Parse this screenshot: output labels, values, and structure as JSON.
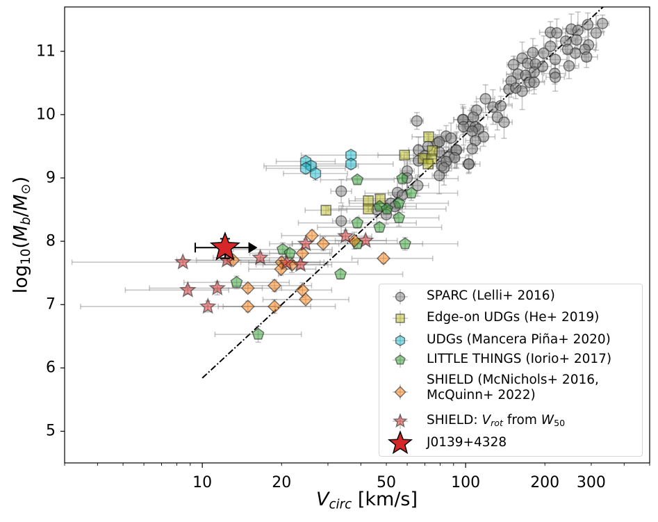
{
  "chart_data": {
    "type": "scatter",
    "title": "",
    "xlabel": {
      "var": "V",
      "sub": "circ",
      "unit": " [km/s]"
    },
    "ylabel": {
      "log": "log",
      "base": "10",
      "open": "(",
      "m": "M",
      "msub": "b",
      "slash": "/",
      "m2": "M",
      "sun": "⊙",
      "close": ")"
    },
    "xscale": "log",
    "xlim": [
      3,
      500
    ],
    "ylim": [
      4.5,
      11.7
    ],
    "xticks": [
      10,
      20,
      50,
      100,
      200,
      300
    ],
    "xtick_labels": [
      "10",
      "20",
      "50",
      "100",
      "200",
      "300"
    ],
    "yticks": [
      5,
      6,
      7,
      8,
      9,
      10,
      11
    ],
    "ytick_labels": [
      "5",
      "6",
      "7",
      "8",
      "9",
      "10",
      "11"
    ],
    "grid": false,
    "legend_placement": "lower-right",
    "reference_line": {
      "style": "dash-dot",
      "color": "#000000",
      "slope": 3.85,
      "intercept": 1.99,
      "x_range": [
        10,
        335
      ]
    },
    "series": [
      {
        "name": "SPARC (Lelli+ 2016)",
        "marker": "circle",
        "color": "#808080",
        "typical_xerr_dex": 0.035,
        "typical_yerr_dex": 0.22,
        "points": [
          [
            65.3,
            9.9
          ],
          [
            33.7,
            8.79
          ],
          [
            33.7,
            8.32
          ],
          [
            60,
            9.11
          ],
          [
            65.8,
            8.88
          ],
          [
            55.1,
            8.77
          ],
          [
            57.5,
            8.73
          ],
          [
            50,
            8.42
          ],
          [
            66.2,
            9.44
          ],
          [
            66.2,
            9.27
          ],
          [
            78,
            9.55
          ],
          [
            79.4,
            9.41
          ],
          [
            81.3,
            9.19
          ],
          [
            79.4,
            9.04
          ],
          [
            84.3,
            9.66
          ],
          [
            86.5,
            9.33
          ],
          [
            91.9,
            9.44
          ],
          [
            102.6,
            9.22
          ],
          [
            98,
            9.92
          ],
          [
            104,
            9.81
          ],
          [
            331,
            11.44
          ],
          [
            291,
            11.42
          ],
          [
            252,
            11.35
          ],
          [
            267,
            11.33
          ],
          [
            210,
            11.3
          ],
          [
            222,
            11.29
          ],
          [
            313,
            11.29
          ],
          [
            264,
            11.18
          ],
          [
            240,
            11.16
          ],
          [
            293,
            11.1
          ],
          [
            210,
            11.08
          ],
          [
            284,
            11.03
          ],
          [
            261,
            10.97
          ],
          [
            244,
            11.03
          ],
          [
            288,
            10.91
          ],
          [
            180,
            10.98
          ],
          [
            198,
            10.97
          ],
          [
            219,
            10.87
          ],
          [
            247,
            10.77
          ],
          [
            164,
            10.89
          ],
          [
            152,
            10.79
          ],
          [
            172,
            10.81
          ],
          [
            196,
            10.76
          ],
          [
            184,
            10.8
          ],
          [
            218,
            10.65
          ],
          [
            219,
            10.59
          ],
          [
            182,
            10.67
          ],
          [
            158,
            10.64
          ],
          [
            169,
            10.62
          ],
          [
            149,
            10.53
          ],
          [
            175,
            10.51
          ],
          [
            182,
            10.51
          ],
          [
            146,
            10.4
          ],
          [
            164,
            10.37
          ],
          [
            155,
            10.42
          ],
          [
            119,
            10.25
          ],
          [
            127,
            10.12
          ],
          [
            136,
            10.14
          ],
          [
            132,
            9.96
          ],
          [
            140,
            9.88
          ],
          [
            110,
            10.07
          ],
          [
            107,
            9.96
          ],
          [
            97.5,
            9.92
          ],
          [
            98.2,
            9.81
          ],
          [
            109,
            9.81
          ],
          [
            112,
            9.77
          ],
          [
            106,
            9.74
          ],
          [
            117,
            9.65
          ],
          [
            109,
            9.59
          ],
          [
            106,
            9.46
          ],
          [
            103,
            9.22
          ],
          [
            79.4,
            9.57
          ],
          [
            88,
            9.63
          ],
          [
            92.5,
            9.44
          ],
          [
            90.8,
            9.32
          ],
          [
            84.3,
            9.26
          ],
          [
            82.8,
            9.16
          ],
          [
            70,
            9.35
          ],
          [
            72,
            9.5
          ],
          [
            60,
            9.0
          ],
          [
            52,
            8.6
          ],
          [
            54,
            8.55
          ],
          [
            46,
            8.5
          ]
        ]
      },
      {
        "name": "Edge-on UDGs (He+ 2019)",
        "marker": "square",
        "color": "#bcbd22",
        "typical_xerr_dex": 0.09,
        "typical_yerr_dex": 0.06,
        "points": [
          [
            72.4,
            9.65
          ],
          [
            58.6,
            9.36
          ],
          [
            69.0,
            9.31
          ],
          [
            74.7,
            9.43
          ],
          [
            74.3,
            9.3
          ],
          [
            72.0,
            9.22
          ],
          [
            42.7,
            8.64
          ],
          [
            42.7,
            8.51
          ],
          [
            47.4,
            8.67
          ],
          [
            29.5,
            8.49
          ]
        ]
      },
      {
        "name": "UDGs (Mancera Piña+ 2020)",
        "marker": "hexagon",
        "color": "#17becf",
        "typical_xerr_dex": 0.16,
        "typical_yerr_dex": 0.08,
        "points": [
          [
            24.7,
            9.26
          ],
          [
            25.9,
            9.19
          ],
          [
            24.7,
            9.15
          ],
          [
            26.9,
            9.07
          ],
          [
            36.7,
            9.36
          ],
          [
            36.7,
            9.22
          ]
        ]
      },
      {
        "name": "LITTLE THINGS (Iorio+ 2017)",
        "marker": "pentagon",
        "color": "#2ca02c",
        "typical_xerr_dex": 0.2,
        "typical_yerr_dex": 0.1,
        "points": [
          [
            38.8,
            8.97
          ],
          [
            38.8,
            8.29
          ],
          [
            20.2,
            7.87
          ],
          [
            21.5,
            7.81
          ],
          [
            33.5,
            7.48
          ],
          [
            13.5,
            7.35
          ],
          [
            16.3,
            6.53
          ],
          [
            38.8,
            7.96
          ],
          [
            57.5,
            8.99
          ],
          [
            62.2,
            8.76
          ],
          [
            47.1,
            8.55
          ],
          [
            50.3,
            8.51
          ],
          [
            55.8,
            8.6
          ],
          [
            55.8,
            8.37
          ],
          [
            47.1,
            8.22
          ],
          [
            58.9,
            7.96
          ]
        ]
      },
      {
        "name": "SHIELD (McNichols+ 2016,",
        "name_line2": "McQuinn+ 2022)",
        "marker": "diamond",
        "color": "#ff7f0e",
        "typical_yerr_dex": 0.1,
        "columns": [
          "V",
          "logM",
          "V_lo",
          "V_hi"
        ],
        "points": [
          [
            13.1,
            7.7,
            9.5,
            18
          ],
          [
            26.1,
            8.09,
            20,
            34
          ],
          [
            28.8,
            7.96,
            22,
            38
          ],
          [
            24.0,
            7.81,
            18,
            31
          ],
          [
            20.0,
            7.67,
            14,
            29
          ],
          [
            19.9,
            7.56,
            15,
            27
          ],
          [
            21.9,
            7.63,
            16,
            30
          ],
          [
            14.9,
            7.26,
            11,
            20
          ],
          [
            18.8,
            7.3,
            13,
            26
          ],
          [
            24.0,
            7.23,
            19,
            31
          ],
          [
            24.7,
            7.08,
            17,
            36
          ],
          [
            14.9,
            6.97,
            11.5,
            19
          ],
          [
            18.8,
            6.97,
            12,
            32
          ],
          [
            37.8,
            8.01,
            28,
            50
          ],
          [
            48.8,
            7.73,
            37,
            75
          ]
        ]
      },
      {
        "name": "SHIELD: V_rot from W_50",
        "marker": "star",
        "color": "#d62728",
        "typical_yerr_dex": 0.08,
        "columns": [
          "V",
          "logM",
          "V_lo",
          "V_hi"
        ],
        "points": [
          [
            8.44,
            7.67,
            3.2,
            39
          ],
          [
            8.81,
            7.23,
            5.1,
            12.6
          ],
          [
            10.5,
            6.97,
            3.45,
            25.8
          ],
          [
            11.4,
            7.26,
            6.3,
            16.9
          ],
          [
            12.4,
            7.7,
            8,
            20
          ],
          [
            16.6,
            7.74,
            11,
            24
          ],
          [
            20.9,
            7.66,
            15,
            28
          ],
          [
            23.6,
            7.63,
            17,
            31
          ],
          [
            24.7,
            7.96,
            18,
            33
          ],
          [
            35.0,
            8.08,
            28,
            44
          ],
          [
            41.7,
            8.01,
            32,
            55
          ]
        ]
      },
      {
        "name": "J0139+4328",
        "marker": "big-star",
        "color": "#d62728",
        "points": [
          [
            12.2,
            7.9
          ]
        ],
        "V_lo": 9.4,
        "V_lower_limit_arrow_to": 16.2,
        "logM_lo": 7.73,
        "logM_hi": 8.04
      }
    ],
    "legend": {
      "entries": [
        {
          "label": "SPARC (Lelli+ 2016)"
        },
        {
          "label": "Edge-on UDGs (He+ 2019)"
        },
        {
          "label": "UDGs (Mancera Piña+ 2020)"
        },
        {
          "label": "LITTLE THINGS (Iorio+ 2017)"
        },
        {
          "label": "SHIELD (McNichols+ 2016,",
          "label_line2": "McQuinn+ 2022)"
        },
        {
          "prefix": "SHIELD: ",
          "v": "V",
          "vsub": "rot",
          "mid": " from ",
          "w": "W",
          "wsub": "50"
        },
        {
          "label": "J0139+4328"
        }
      ]
    }
  }
}
